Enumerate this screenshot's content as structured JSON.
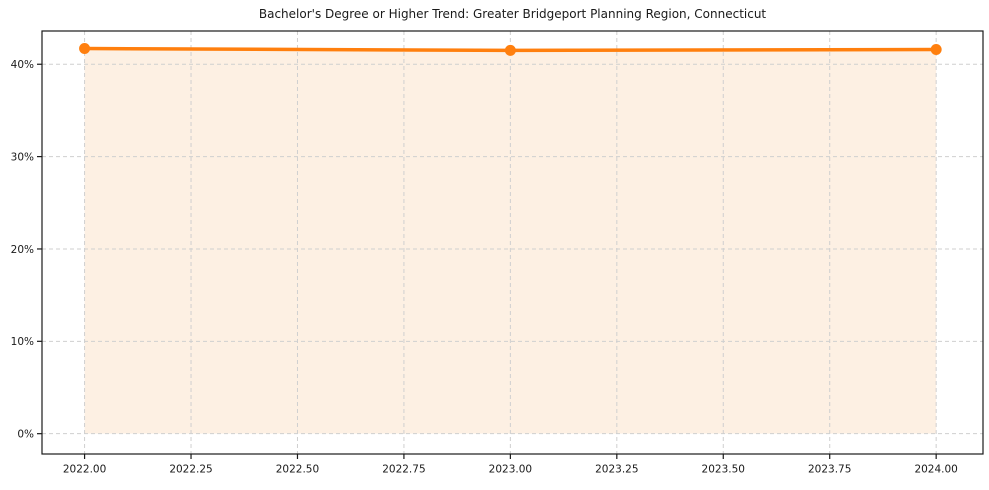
{
  "chart_data": {
    "type": "line",
    "title": "Bachelor's Degree or Higher Trend: Greater Bridgeport Planning Region, Connecticut",
    "xlabel": "",
    "ylabel": "",
    "series": [
      {
        "name": "Bachelor's Degree or Higher",
        "x": [
          2022.0,
          2023.0,
          2024.0
        ],
        "values": [
          41.7,
          41.5,
          41.6
        ]
      }
    ],
    "xlim": [
      2021.9,
      2024.11
    ],
    "ylim": [
      -2.2,
      43.6
    ],
    "xticks": {
      "values": [
        2022.0,
        2022.25,
        2022.5,
        2022.75,
        2023.0,
        2023.25,
        2023.5,
        2023.75,
        2024.0
      ],
      "labels": [
        "2022.00",
        "2022.25",
        "2022.50",
        "2022.75",
        "2023.00",
        "2023.25",
        "2023.50",
        "2023.75",
        "2024.00"
      ]
    },
    "yticks": {
      "values": [
        0,
        10,
        20,
        30,
        40
      ],
      "labels": [
        "0%",
        "10%",
        "20%",
        "30%",
        "40%"
      ]
    },
    "grid": true,
    "grid_style": "dashed",
    "legend": "none",
    "fill_baseline": 0,
    "colors": {
      "line": "#ff7f0e",
      "marker": "#ff7f0e",
      "area_fill": "#fdf0e3",
      "grid": "#cfcfcf",
      "axis": "#1a1a1a",
      "text": "#1a1a1a",
      "background": "#ffffff"
    }
  }
}
